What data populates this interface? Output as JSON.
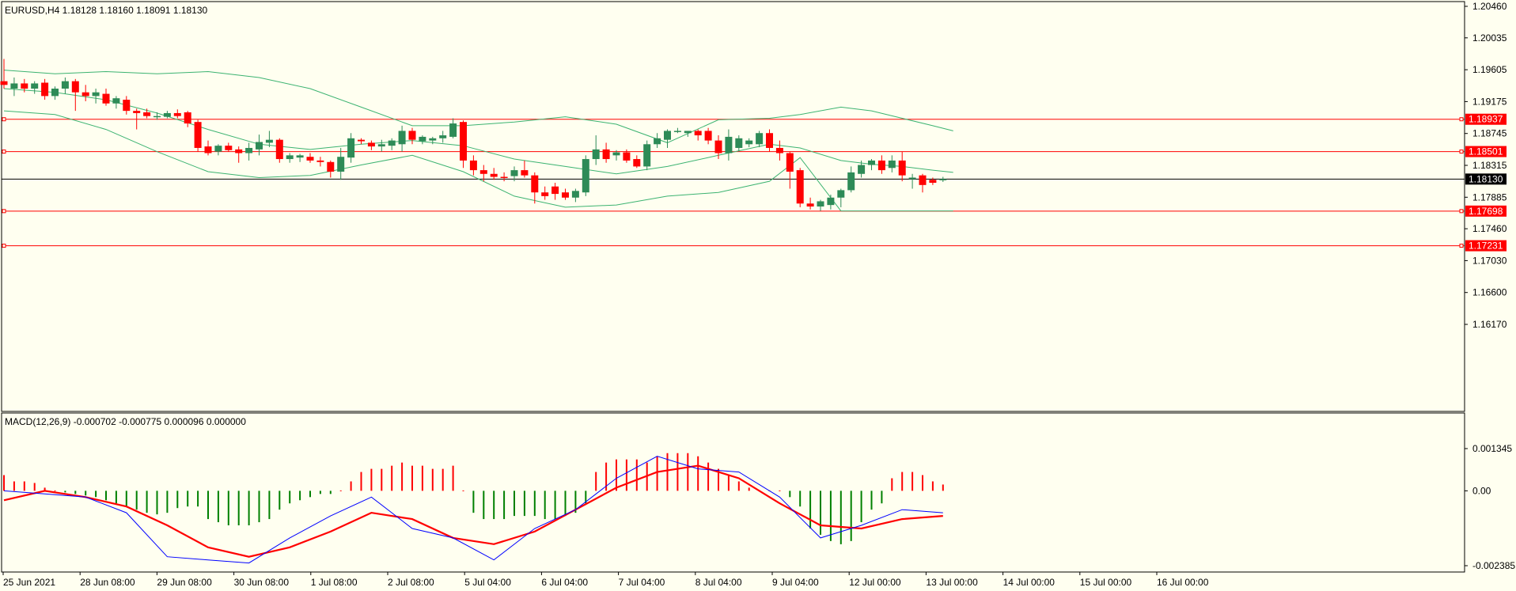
{
  "header": {
    "main": "EURUSD,H4  1.18128 1.18160 1.18091 1.18130",
    "macd": "MACD(12,26,9) -0.000702 -0.000775 0.000096 0.000000"
  },
  "colors": {
    "background": "#FFFFF0",
    "bull": "#2E8B57",
    "bear": "#FF0000",
    "bands": "#3CB371",
    "macd_line": "#0000FF",
    "signal_line": "#FF0000",
    "hist_pos": "#FF0000",
    "hist_neg": "#008000",
    "hline": "#FF0000",
    "current_price": "#000000"
  },
  "chart_data": [
    {
      "type": "candlestick",
      "symbol": "EURUSD",
      "timeframe": "H4",
      "last_ohlc": {
        "open": 1.18128,
        "high": 1.1816,
        "low": 1.18091,
        "close": 1.1813
      },
      "ylim": [
        1.16,
        1.205
      ],
      "y_ticks": [
        "1.20460",
        "1.20035",
        "1.19605",
        "1.19175",
        "1.18745",
        "1.18315",
        "1.17885",
        "1.17460",
        "1.17030",
        "1.16600",
        "1.16170"
      ],
      "x_labels": [
        "25 Jun 2021",
        "28 Jun 08:00",
        "29 Jun 08:00",
        "30 Jun 08:00",
        "1 Jul 08:00",
        "2 Jul 08:00",
        "5 Jul 04:00",
        "6 Jul 04:00",
        "7 Jul 04:00",
        "8 Jul 04:00",
        "9 Jul 04:00",
        "12 Jul 00:00",
        "13 Jul 00:00",
        "14 Jul 00:00",
        "15 Jul 00:00",
        "16 Jul 00:00"
      ],
      "horizontal_levels": [
        {
          "value": 1.18937,
          "label": "1.18937"
        },
        {
          "value": 1.18501,
          "label": "1.18501"
        },
        {
          "value": 1.17698,
          "label": "1.17698"
        },
        {
          "value": 1.17231,
          "label": "1.17231"
        }
      ],
      "current_price": {
        "value": 1.1813,
        "label": "1.18130"
      },
      "candles": [
        {
          "o": 1.1945,
          "h": 1.1975,
          "l": 1.1935,
          "c": 1.194
        },
        {
          "o": 1.1935,
          "h": 1.195,
          "l": 1.1925,
          "c": 1.1942
        },
        {
          "o": 1.1942,
          "h": 1.1948,
          "l": 1.193,
          "c": 1.1935
        },
        {
          "o": 1.1935,
          "h": 1.1945,
          "l": 1.1928,
          "c": 1.1942
        },
        {
          "o": 1.1943,
          "h": 1.1948,
          "l": 1.192,
          "c": 1.1925
        },
        {
          "o": 1.1925,
          "h": 1.1938,
          "l": 1.192,
          "c": 1.1935
        },
        {
          "o": 1.1935,
          "h": 1.195,
          "l": 1.1928,
          "c": 1.1945
        },
        {
          "o": 1.1945,
          "h": 1.1948,
          "l": 1.1905,
          "c": 1.193
        },
        {
          "o": 1.193,
          "h": 1.194,
          "l": 1.1918,
          "c": 1.1925
        },
        {
          "o": 1.1925,
          "h": 1.1935,
          "l": 1.1915,
          "c": 1.193
        },
        {
          "o": 1.1928,
          "h": 1.1935,
          "l": 1.1912,
          "c": 1.1915
        },
        {
          "o": 1.1915,
          "h": 1.1925,
          "l": 1.1908,
          "c": 1.1922
        },
        {
          "o": 1.192,
          "h": 1.1925,
          "l": 1.19,
          "c": 1.1905
        },
        {
          "o": 1.1905,
          "h": 1.1908,
          "l": 1.188,
          "c": 1.1902
        },
        {
          "o": 1.1903,
          "h": 1.1908,
          "l": 1.1895,
          "c": 1.1898
        },
        {
          "o": 1.1898,
          "h": 1.1903,
          "l": 1.1893,
          "c": 1.1898
        },
        {
          "o": 1.1897,
          "h": 1.1905,
          "l": 1.1895,
          "c": 1.1902
        },
        {
          "o": 1.1902,
          "h": 1.1907,
          "l": 1.1895,
          "c": 1.1898
        },
        {
          "o": 1.1903,
          "h": 1.1905,
          "l": 1.1883,
          "c": 1.1888
        },
        {
          "o": 1.189,
          "h": 1.1893,
          "l": 1.185,
          "c": 1.1855
        },
        {
          "o": 1.1857,
          "h": 1.1865,
          "l": 1.1845,
          "c": 1.1848
        },
        {
          "o": 1.185,
          "h": 1.186,
          "l": 1.1845,
          "c": 1.1858
        },
        {
          "o": 1.1858,
          "h": 1.1862,
          "l": 1.185,
          "c": 1.1852
        },
        {
          "o": 1.1853,
          "h": 1.1857,
          "l": 1.1835,
          "c": 1.1848
        },
        {
          "o": 1.1848,
          "h": 1.1862,
          "l": 1.1838,
          "c": 1.1855
        },
        {
          "o": 1.1853,
          "h": 1.1873,
          "l": 1.1845,
          "c": 1.1863
        },
        {
          "o": 1.1862,
          "h": 1.1878,
          "l": 1.1856,
          "c": 1.1866
        },
        {
          "o": 1.1866,
          "h": 1.1868,
          "l": 1.1835,
          "c": 1.184
        },
        {
          "o": 1.184,
          "h": 1.1848,
          "l": 1.1835,
          "c": 1.1845
        },
        {
          "o": 1.1842,
          "h": 1.1847,
          "l": 1.1836,
          "c": 1.1845
        },
        {
          "o": 1.1843,
          "h": 1.1848,
          "l": 1.1835,
          "c": 1.1838
        },
        {
          "o": 1.1838,
          "h": 1.1843,
          "l": 1.183,
          "c": 1.1836
        },
        {
          "o": 1.1836,
          "h": 1.1838,
          "l": 1.1815,
          "c": 1.1823
        },
        {
          "o": 1.1823,
          "h": 1.1855,
          "l": 1.1812,
          "c": 1.1843
        },
        {
          "o": 1.1842,
          "h": 1.1875,
          "l": 1.1835,
          "c": 1.1868
        },
        {
          "o": 1.1866,
          "h": 1.1868,
          "l": 1.186,
          "c": 1.1864
        },
        {
          "o": 1.1862,
          "h": 1.1865,
          "l": 1.1852,
          "c": 1.1857
        },
        {
          "o": 1.1857,
          "h": 1.1866,
          "l": 1.185,
          "c": 1.186
        },
        {
          "o": 1.1858,
          "h": 1.1868,
          "l": 1.1852,
          "c": 1.1865
        },
        {
          "o": 1.186,
          "h": 1.1885,
          "l": 1.185,
          "c": 1.1878
        },
        {
          "o": 1.1878,
          "h": 1.1882,
          "l": 1.186,
          "c": 1.1866
        },
        {
          "o": 1.1864,
          "h": 1.1872,
          "l": 1.186,
          "c": 1.187
        },
        {
          "o": 1.1865,
          "h": 1.187,
          "l": 1.186,
          "c": 1.1868
        },
        {
          "o": 1.1868,
          "h": 1.1878,
          "l": 1.1862,
          "c": 1.1872
        },
        {
          "o": 1.187,
          "h": 1.1895,
          "l": 1.1868,
          "c": 1.1888
        },
        {
          "o": 1.189,
          "h": 1.1892,
          "l": 1.1828,
          "c": 1.1838
        },
        {
          "o": 1.1838,
          "h": 1.1845,
          "l": 1.1818,
          "c": 1.1825
        },
        {
          "o": 1.1825,
          "h": 1.1832,
          "l": 1.181,
          "c": 1.182
        },
        {
          "o": 1.182,
          "h": 1.1828,
          "l": 1.1812,
          "c": 1.1816
        },
        {
          "o": 1.1816,
          "h": 1.1822,
          "l": 1.181,
          "c": 1.1815
        },
        {
          "o": 1.1817,
          "h": 1.183,
          "l": 1.181,
          "c": 1.1825
        },
        {
          "o": 1.1825,
          "h": 1.1838,
          "l": 1.1815,
          "c": 1.1818
        },
        {
          "o": 1.1818,
          "h": 1.1822,
          "l": 1.178,
          "c": 1.1795
        },
        {
          "o": 1.1795,
          "h": 1.1803,
          "l": 1.1785,
          "c": 1.179
        },
        {
          "o": 1.1803,
          "h": 1.1808,
          "l": 1.1785,
          "c": 1.1793
        },
        {
          "o": 1.1795,
          "h": 1.18,
          "l": 1.1785,
          "c": 1.1788
        },
        {
          "o": 1.1788,
          "h": 1.18,
          "l": 1.1782,
          "c": 1.1797
        },
        {
          "o": 1.1795,
          "h": 1.1845,
          "l": 1.179,
          "c": 1.184
        },
        {
          "o": 1.184,
          "h": 1.1872,
          "l": 1.1832,
          "c": 1.1853
        },
        {
          "o": 1.1853,
          "h": 1.1862,
          "l": 1.1835,
          "c": 1.184
        },
        {
          "o": 1.1845,
          "h": 1.1852,
          "l": 1.1838,
          "c": 1.1849
        },
        {
          "o": 1.1849,
          "h": 1.1853,
          "l": 1.1835,
          "c": 1.1838
        },
        {
          "o": 1.184,
          "h": 1.1845,
          "l": 1.1828,
          "c": 1.183
        },
        {
          "o": 1.183,
          "h": 1.1865,
          "l": 1.1825,
          "c": 1.186
        },
        {
          "o": 1.186,
          "h": 1.1875,
          "l": 1.1855,
          "c": 1.1868
        },
        {
          "o": 1.1866,
          "h": 1.188,
          "l": 1.1855,
          "c": 1.1878
        },
        {
          "o": 1.1878,
          "h": 1.1882,
          "l": 1.1875,
          "c": 1.1878
        },
        {
          "o": 1.1875,
          "h": 1.1878,
          "l": 1.187,
          "c": 1.1878
        },
        {
          "o": 1.1878,
          "h": 1.188,
          "l": 1.1865,
          "c": 1.1872
        },
        {
          "o": 1.1878,
          "h": 1.1882,
          "l": 1.186,
          "c": 1.1865
        },
        {
          "o": 1.1865,
          "h": 1.1872,
          "l": 1.184,
          "c": 1.1848
        },
        {
          "o": 1.1848,
          "h": 1.188,
          "l": 1.1838,
          "c": 1.187
        },
        {
          "o": 1.1855,
          "h": 1.1872,
          "l": 1.185,
          "c": 1.1868
        },
        {
          "o": 1.186,
          "h": 1.1868,
          "l": 1.1856,
          "c": 1.1865
        },
        {
          "o": 1.186,
          "h": 1.1878,
          "l": 1.1856,
          "c": 1.1875
        },
        {
          "o": 1.1875,
          "h": 1.188,
          "l": 1.185,
          "c": 1.1855
        },
        {
          "o": 1.1855,
          "h": 1.1865,
          "l": 1.1838,
          "c": 1.1848
        },
        {
          "o": 1.1848,
          "h": 1.185,
          "l": 1.18,
          "c": 1.1823
        },
        {
          "o": 1.1825,
          "h": 1.1828,
          "l": 1.1775,
          "c": 1.178
        },
        {
          "o": 1.178,
          "h": 1.1788,
          "l": 1.1772,
          "c": 1.1776
        },
        {
          "o": 1.1776,
          "h": 1.1785,
          "l": 1.177,
          "c": 1.1783
        },
        {
          "o": 1.1778,
          "h": 1.1792,
          "l": 1.1772,
          "c": 1.1788
        },
        {
          "o": 1.1788,
          "h": 1.18,
          "l": 1.1775,
          "c": 1.1798
        },
        {
          "o": 1.1798,
          "h": 1.183,
          "l": 1.1795,
          "c": 1.1822
        },
        {
          "o": 1.182,
          "h": 1.1838,
          "l": 1.1815,
          "c": 1.1832
        },
        {
          "o": 1.1832,
          "h": 1.184,
          "l": 1.1825,
          "c": 1.1838
        },
        {
          "o": 1.1838,
          "h": 1.1845,
          "l": 1.182,
          "c": 1.1825
        },
        {
          "o": 1.1828,
          "h": 1.1845,
          "l": 1.1822,
          "c": 1.1838
        },
        {
          "o": 1.1838,
          "h": 1.185,
          "l": 1.181,
          "c": 1.1818
        },
        {
          "o": 1.1813,
          "h": 1.182,
          "l": 1.18,
          "c": 1.1815
        },
        {
          "o": 1.1818,
          "h": 1.182,
          "l": 1.1795,
          "c": 1.1805
        },
        {
          "o": 1.1812,
          "h": 1.1815,
          "l": 1.1805,
          "c": 1.1808
        },
        {
          "o": 1.18128,
          "h": 1.1816,
          "l": 1.18091,
          "c": 1.1813
        }
      ],
      "bands": {
        "x_index": [
          0,
          5,
          10,
          15,
          20,
          25,
          30,
          35,
          40,
          45,
          50,
          55,
          60,
          65,
          70,
          75,
          78,
          82,
          85,
          88,
          91,
          93
        ],
        "upper": [
          1.196,
          1.1955,
          1.1958,
          1.1955,
          1.1958,
          1.195,
          1.1935,
          1.191,
          1.1885,
          1.1885,
          1.189,
          1.1897,
          1.1887,
          1.1862,
          1.1893,
          1.1895,
          1.19,
          1.191,
          1.1905,
          1.1895,
          1.1885,
          1.1878
        ],
        "middle": [
          1.1935,
          1.193,
          1.192,
          1.1902,
          1.188,
          1.186,
          1.1853,
          1.186,
          1.1865,
          1.1858,
          1.184,
          1.183,
          1.182,
          1.183,
          1.1845,
          1.186,
          1.1855,
          1.1838,
          1.1833,
          1.183,
          1.1825,
          1.1822
        ],
        "lower": [
          1.1905,
          1.19,
          1.188,
          1.185,
          1.1823,
          1.1815,
          1.1818,
          1.1832,
          1.1845,
          1.1823,
          1.179,
          1.1775,
          1.1778,
          1.179,
          1.1795,
          1.181,
          1.1842,
          1.177,
          1.177,
          1.177,
          1.177,
          1.177
        ]
      }
    },
    {
      "type": "macd",
      "params": "12,26,9",
      "ylim": [
        -0.002385,
        0.001345
      ],
      "y_ticks": [
        "0.001345",
        "0.00",
        "-0.002385"
      ],
      "histogram": [
        0.0005,
        0.0003,
        0.0003,
        0.00025,
        0.0001,
        0.0,
        -5e-05,
        -0.0001,
        -0.00015,
        -0.0002,
        -0.0003,
        -0.0004,
        -0.0005,
        -0.0006,
        -0.0007,
        -0.00075,
        -0.0007,
        -0.00055,
        -0.0005,
        -0.0005,
        -0.0009,
        -0.001,
        -0.0011,
        -0.0011,
        -0.0011,
        -0.001,
        -0.0009,
        -0.0006,
        -0.0004,
        -0.0003,
        -0.0002,
        -0.0001,
        -0.0001,
        0.0,
        0.0003,
        0.0006,
        0.0007,
        0.0007,
        0.0008,
        0.0009,
        0.0008,
        0.0008,
        0.0007,
        0.0007,
        0.0008,
        0.0,
        -0.0007,
        -0.0009,
        -0.0009,
        -0.0009,
        -0.0008,
        -0.0008,
        -0.0008,
        -0.0009,
        -0.0009,
        -0.0008,
        -0.0007,
        -0.0004,
        0.0006,
        0.0009,
        0.001,
        0.001,
        0.001,
        0.0009,
        0.0011,
        0.0012,
        0.0012,
        0.0012,
        0.0011,
        0.0009,
        0.0007,
        0.0005,
        0.0003,
        0.0001,
        0.0,
        0.0,
        0.0,
        -0.0002,
        -0.0005,
        -0.0012,
        -0.0014,
        -0.0016,
        -0.0017,
        -0.0016,
        -0.001,
        -0.0006,
        -0.0004,
        0.0004,
        0.0006,
        0.0006,
        0.0005,
        0.0003,
        0.0002
      ],
      "macd_x_index": [
        0,
        4,
        8,
        12,
        16,
        20,
        24,
        28,
        32,
        36,
        40,
        44,
        48,
        52,
        56,
        60,
        64,
        68,
        72,
        76,
        80,
        84,
        88,
        92
      ],
      "macd": [
        0.0,
        -0.0001,
        -0.0002,
        -0.0007,
        -0.0021,
        -0.0022,
        -0.0023,
        -0.0015,
        -0.0008,
        -0.0002,
        -0.0012,
        -0.0015,
        -0.0022,
        -0.0012,
        -0.0006,
        0.0004,
        0.0011,
        0.0007,
        0.0006,
        -0.0002,
        -0.0015,
        -0.0011,
        -0.0006,
        -0.0007
      ],
      "signal": [
        -0.0003,
        0.0,
        -0.0002,
        -0.0005,
        -0.0011,
        -0.0018,
        -0.0021,
        -0.0018,
        -0.0013,
        -0.0007,
        -0.0009,
        -0.0015,
        -0.0017,
        -0.0013,
        -0.0006,
        0.0001,
        0.0006,
        0.0008,
        0.0004,
        -0.0004,
        -0.0011,
        -0.0012,
        -0.0009,
        -0.0008
      ]
    }
  ]
}
